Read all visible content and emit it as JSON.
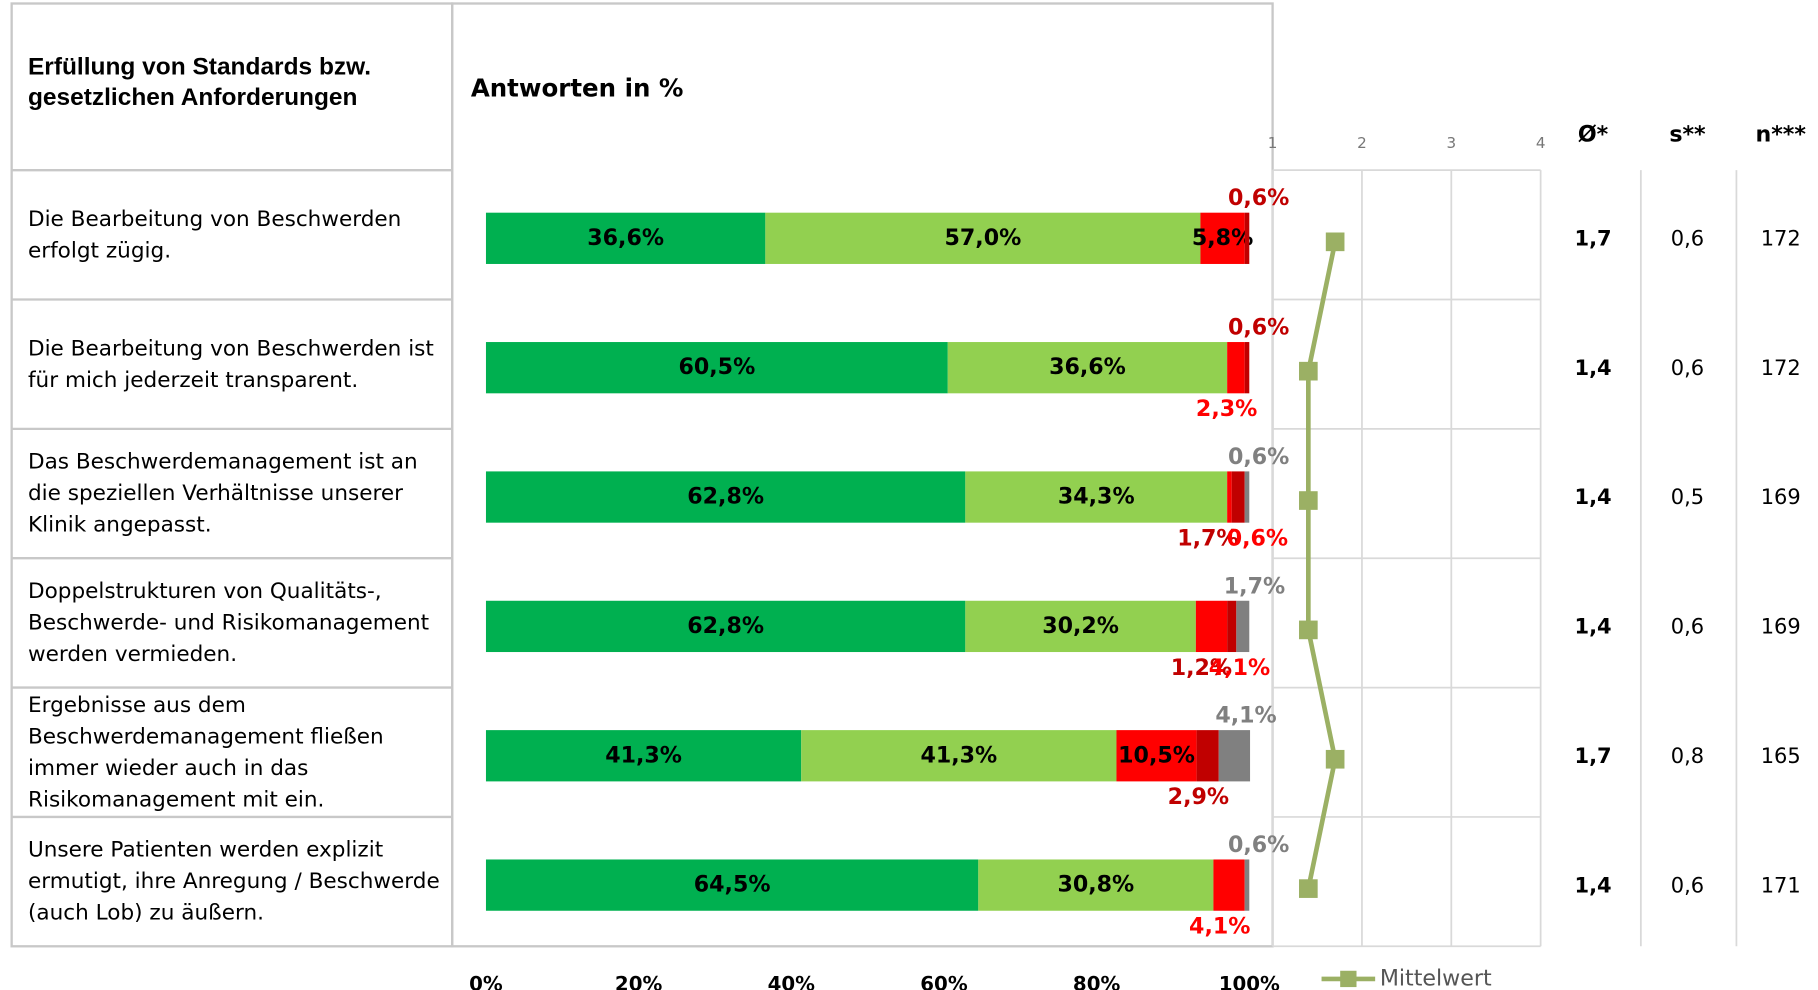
{
  "chart_data": {
    "type": "bar",
    "orientation": "horizontal",
    "stacked": true,
    "row_header": "Erfüllung von Standards bzw. gesetzlichen Anforderungen",
    "title": "Antworten in %",
    "categories": [
      "Die Bearbeitung von Beschwerden erfolgt zügig.",
      "Die Bearbeitung von Beschwerden ist für mich jederzeit transparent.",
      "Das Beschwerdemanagement ist an die speziellen Verhältnisse unserer Klinik angepasst.",
      "Doppelstrukturen von Qualitäts-, Beschwerde- und Risikomanagement werden vermieden.",
      "Ergebnisse aus dem Beschwerdemanagement fließen immer wieder auch in das Risikomanagement mit ein.",
      "Unsere Patienten werden explizit ermutigt, ihre Anregung / Beschwerde (auch Lob) zu äußern."
    ],
    "series": [
      {
        "color": "#00b050",
        "values": [
          36.6,
          60.5,
          62.8,
          62.8,
          41.3,
          64.5
        ],
        "value_labels": [
          "36,6%",
          "60,5%",
          "62,8%",
          "62,8%",
          "41,3%",
          "64,5%"
        ]
      },
      {
        "color": "#92d050",
        "values": [
          57.0,
          36.6,
          34.3,
          30.2,
          41.3,
          30.8
        ],
        "value_labels": [
          "57,0%",
          "36,6%",
          "34,3%",
          "30,2%",
          "41,3%",
          "30,8%"
        ]
      },
      {
        "color": "#ff0000",
        "values": [
          5.8,
          2.3,
          0.6,
          4.1,
          10.5,
          4.1
        ],
        "value_labels": [
          "5,8%",
          "2,3%",
          "0,6%",
          "4,1%",
          "10,5%",
          "4,1%"
        ]
      },
      {
        "color": "#c00000",
        "values": [
          0.6,
          0.6,
          1.7,
          1.2,
          2.9,
          null
        ],
        "value_labels": [
          "0,6%",
          "0,6%",
          "1,7%",
          "1,2%",
          "2,9%",
          null
        ]
      },
      {
        "color": "#808080",
        "values": [
          null,
          null,
          0.6,
          1.7,
          4.1,
          0.6
        ],
        "value_labels": [
          null,
          null,
          "0,6%",
          "1,7%",
          "4,1%",
          "0,6%"
        ]
      }
    ],
    "xlim": [
      0,
      100
    ],
    "xticks": [
      {
        "value": 0,
        "label": "0%"
      },
      {
        "value": 20,
        "label": "20%"
      },
      {
        "value": 40,
        "label": "40%"
      },
      {
        "value": 60,
        "label": "60%"
      },
      {
        "value": 80,
        "label": "80%"
      },
      {
        "value": 100,
        "label": "100%"
      }
    ],
    "mean_series": {
      "name": "Mittelwert",
      "color": "#9bb064",
      "values": [
        1.7,
        1.4,
        1.4,
        1.4,
        1.7,
        1.4
      ]
    },
    "mean_xlim": [
      1,
      4
    ],
    "mean_xticks": [
      1,
      2,
      3,
      4
    ],
    "stats": {
      "headers": [
        "Ø*",
        "s**",
        "n***"
      ],
      "rows": [
        [
          "1,7",
          "0,6",
          "172"
        ],
        [
          "1,4",
          "0,6",
          "172"
        ],
        [
          "1,4",
          "0,5",
          "169"
        ],
        [
          "1,4",
          "0,6",
          "169"
        ],
        [
          "1,7",
          "0,8",
          "165"
        ],
        [
          "1,4",
          "0,6",
          "171"
        ]
      ]
    }
  }
}
